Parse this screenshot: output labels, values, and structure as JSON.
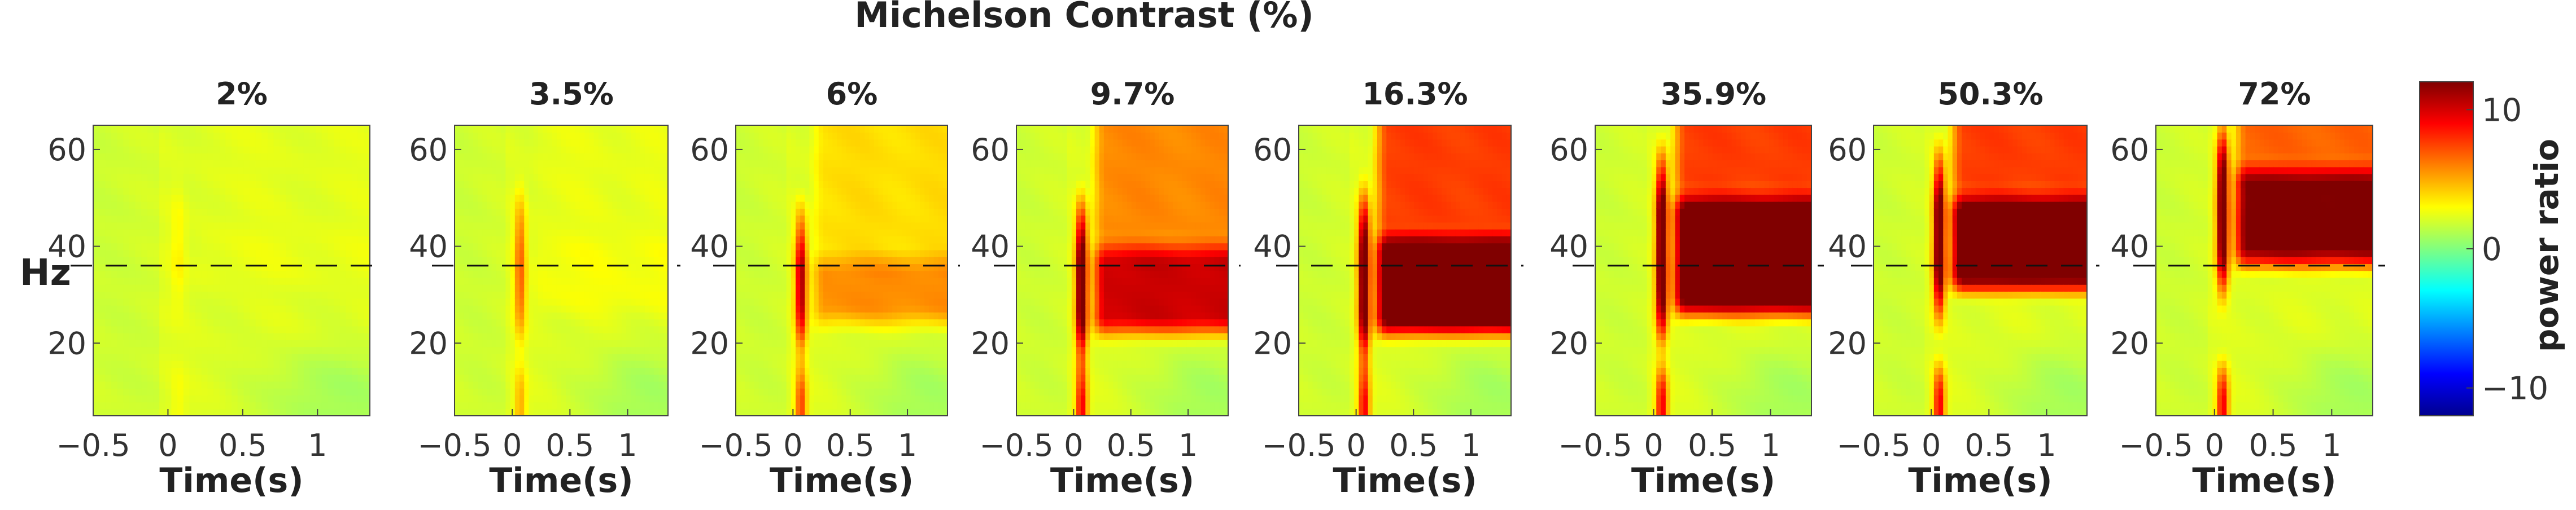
{
  "chart_data": {
    "type": "heatmap",
    "title": "Michelson Contrast (%)",
    "ylabel": "Hz",
    "xlabel": "Time(s)",
    "xlim": [
      -0.5,
      1.35
    ],
    "ylim": [
      5,
      65
    ],
    "xticks": [
      -0.5,
      0,
      0.5,
      1
    ],
    "xtick_labels": [
      "−0.5",
      "0",
      "0.5",
      "1"
    ],
    "yticks": [
      20,
      40,
      60
    ],
    "ytick_labels": [
      "20",
      "40",
      "60"
    ],
    "reference_line_hz": 36,
    "grid": false,
    "colorbar": {
      "label": "power ratio",
      "range": [
        -12,
        12
      ],
      "ticks": [
        10,
        0,
        -10
      ],
      "tick_labels": [
        "10",
        "0",
        "−10"
      ],
      "colormap": [
        "#00008f",
        "#0000ff",
        "#0080ff",
        "#00ffff",
        "#80ff80",
        "#ffff00",
        "#ff8000",
        "#ff0000",
        "#800000"
      ]
    },
    "panels": [
      {
        "label": "2%",
        "band_low": 34,
        "band_high": 42,
        "sustained": 0.3,
        "onset": 1.0
      },
      {
        "label": "3.5%",
        "band_low": 28,
        "band_high": 40,
        "sustained": 0.6,
        "onset": 4.5
      },
      {
        "label": "6%",
        "band_low": 26,
        "band_high": 36,
        "sustained": 3.5,
        "onset": 9.0
      },
      {
        "label": "9.7%",
        "band_low": 24,
        "band_high": 38,
        "sustained": 8.0,
        "onset": 12
      },
      {
        "label": "16.3%",
        "band_low": 24,
        "band_high": 40,
        "sustained": 12,
        "onset": 12
      },
      {
        "label": "35.9%",
        "band_low": 28,
        "band_high": 48,
        "sustained": 12,
        "onset": 12
      },
      {
        "label": "50.3%",
        "band_low": 33,
        "band_high": 48,
        "sustained": 12,
        "onset": 12
      },
      {
        "label": "72%",
        "band_low": 38,
        "band_high": 54,
        "sustained": 10,
        "onset": 12
      }
    ]
  }
}
